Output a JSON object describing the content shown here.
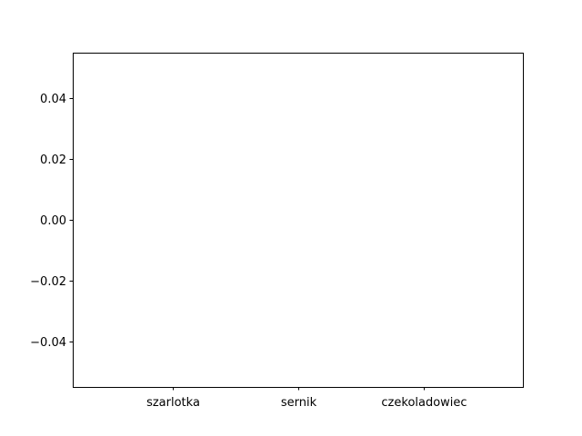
{
  "chart_data": {
    "type": "bar",
    "title": "",
    "xlabel": "",
    "ylabel": "",
    "categories": [
      "szarlotka",
      "sernik",
      "czekoladowiec"
    ],
    "values": [
      0,
      0,
      0
    ],
    "ylim": [
      -0.055,
      0.055
    ],
    "yticks": [
      0.04,
      0.02,
      0.0,
      -0.02,
      -0.04
    ],
    "ytick_labels": [
      "0.04",
      "0.02",
      "0.00",
      "−0.02",
      "−0.04"
    ],
    "grid": false,
    "legend": "none",
    "colors": {
      "axis": "#000000",
      "bar": "#1f77b4",
      "background": "#ffffff"
    }
  }
}
